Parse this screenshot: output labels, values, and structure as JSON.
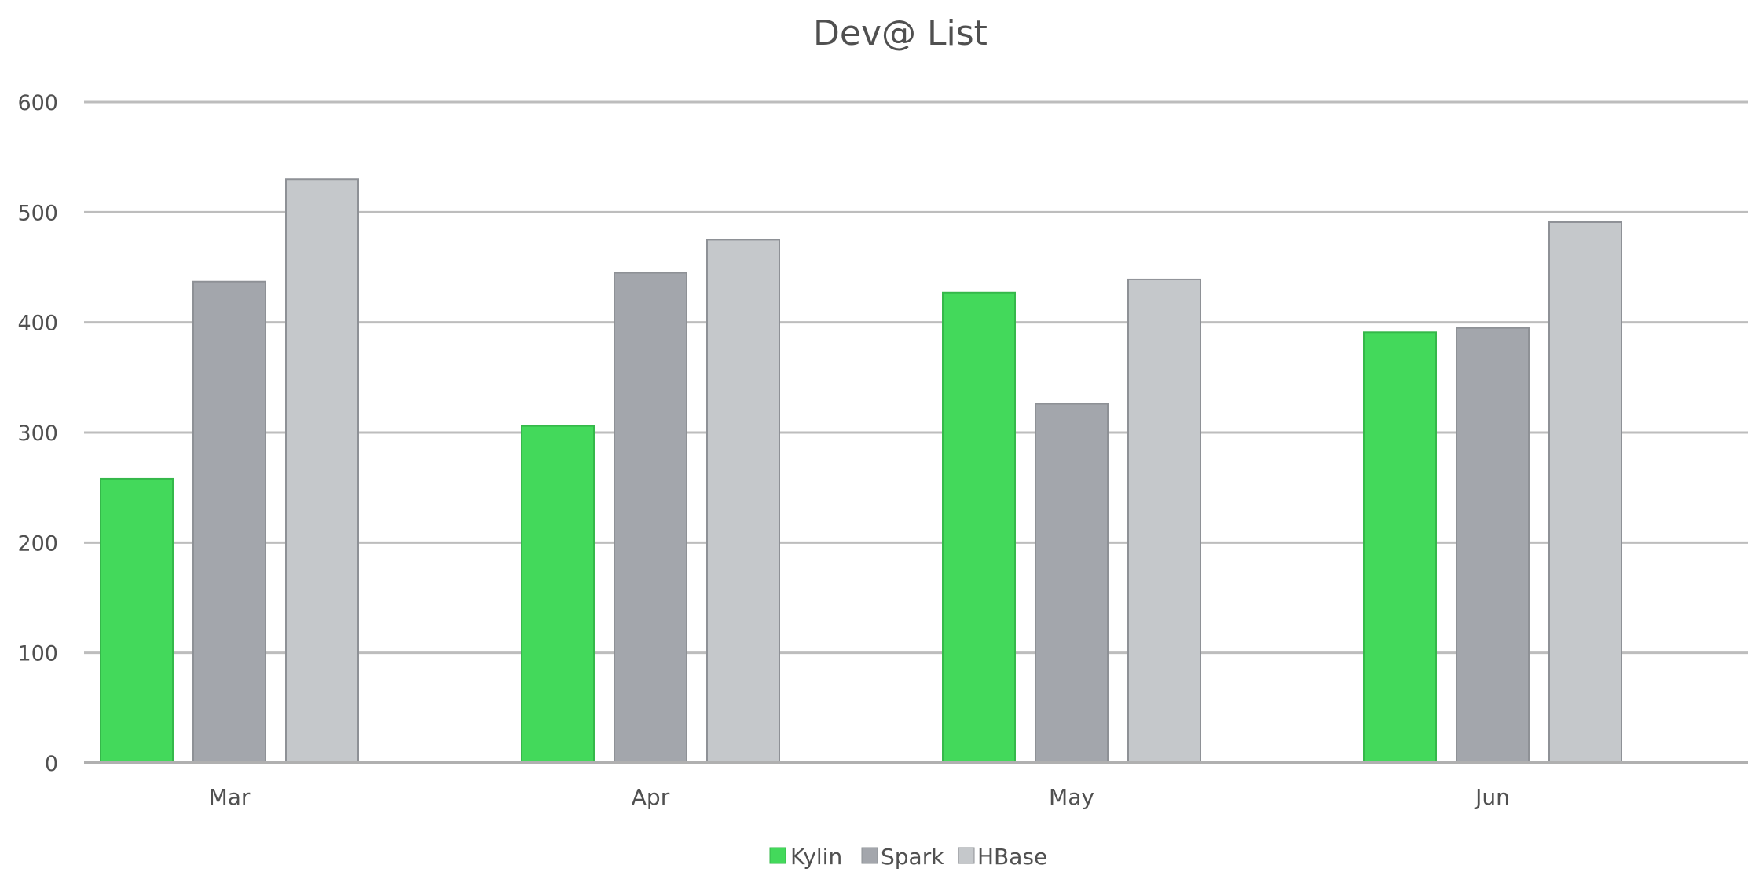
{
  "chart_data": {
    "type": "bar",
    "title": "Dev@ List",
    "xlabel": "",
    "ylabel": "",
    "categories": [
      "Mar",
      "Apr",
      "May",
      "Jun"
    ],
    "series": [
      {
        "name": "Kylin",
        "color": "#43d95b",
        "values": [
          258,
          306,
          427,
          391
        ]
      },
      {
        "name": "Spark",
        "color": "#a3a6ac",
        "values": [
          437,
          445,
          326,
          395
        ]
      },
      {
        "name": "HBase",
        "color": "#c5c8cb",
        "values": [
          530,
          475,
          439,
          491
        ]
      }
    ],
    "ylim": [
      0,
      600
    ],
    "yticks": [
      0,
      100,
      200,
      300,
      400,
      500,
      600
    ],
    "grid": true,
    "legend": "bottom-center"
  }
}
